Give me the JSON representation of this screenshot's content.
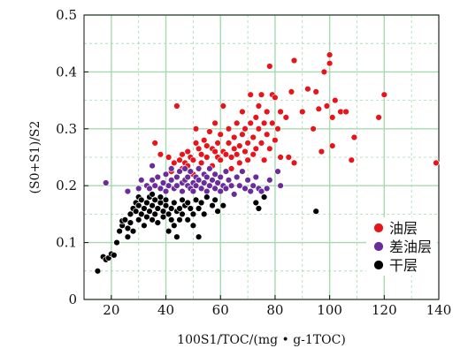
{
  "chart_data": {
    "type": "scatter",
    "xlabel": "100S1/TOC/(mg • g-1TOC)",
    "ylabel": "(S0+S1)/S2",
    "xlim": [
      10,
      140
    ],
    "ylim": [
      0,
      0.5
    ],
    "x_ticks": [
      "20",
      "40",
      "60",
      "80",
      "100",
      "120",
      "140"
    ],
    "y_ticks": [
      "0",
      "0.1",
      "0.2",
      "0.3",
      "0.4",
      "0.5"
    ],
    "grid": true,
    "legend_position": "bottom-right",
    "series": [
      {
        "name": "油层",
        "color": "#e8141c",
        "points": [
          [
            36,
            0.275
          ],
          [
            38,
            0.255
          ],
          [
            41,
            0.25
          ],
          [
            42,
            0.225
          ],
          [
            43,
            0.24
          ],
          [
            44,
            0.215
          ],
          [
            44,
            0.34
          ],
          [
            45,
            0.245
          ],
          [
            46,
            0.23
          ],
          [
            46,
            0.255
          ],
          [
            47,
            0.24
          ],
          [
            48,
            0.26
          ],
          [
            48,
            0.235
          ],
          [
            49,
            0.25
          ],
          [
            50,
            0.245
          ],
          [
            50,
            0.22
          ],
          [
            51,
            0.275
          ],
          [
            51,
            0.3
          ],
          [
            52,
            0.265
          ],
          [
            53,
            0.255
          ],
          [
            53,
            0.24
          ],
          [
            54,
            0.28
          ],
          [
            55,
            0.27
          ],
          [
            55,
            0.25
          ],
          [
            56,
            0.295
          ],
          [
            57,
            0.265
          ],
          [
            57,
            0.235
          ],
          [
            58,
            0.26
          ],
          [
            58,
            0.31
          ],
          [
            59,
            0.25
          ],
          [
            59,
            0.275
          ],
          [
            60,
            0.245
          ],
          [
            60,
            0.29
          ],
          [
            61,
            0.26
          ],
          [
            61,
            0.34
          ],
          [
            62,
            0.255
          ],
          [
            63,
            0.275
          ],
          [
            63,
            0.3
          ],
          [
            64,
            0.23
          ],
          [
            64,
            0.25
          ],
          [
            65,
            0.265
          ],
          [
            65,
            0.285
          ],
          [
            66,
            0.31
          ],
          [
            66,
            0.255
          ],
          [
            67,
            0.27
          ],
          [
            67,
            0.24
          ],
          [
            68,
            0.29
          ],
          [
            68,
            0.33
          ],
          [
            69,
            0.26
          ],
          [
            69,
            0.3
          ],
          [
            70,
            0.275
          ],
          [
            70,
            0.245
          ],
          [
            71,
            0.31
          ],
          [
            71,
            0.36
          ],
          [
            72,
            0.285
          ],
          [
            72,
            0.255
          ],
          [
            73,
            0.32
          ],
          [
            73,
            0.265
          ],
          [
            74,
            0.34
          ],
          [
            74,
            0.3
          ],
          [
            75,
            0.275
          ],
          [
            75,
            0.36
          ],
          [
            76,
            0.31
          ],
          [
            76,
            0.245
          ],
          [
            77,
            0.33
          ],
          [
            77,
            0.29
          ],
          [
            78,
            0.41
          ],
          [
            78,
            0.265
          ],
          [
            79,
            0.36
          ],
          [
            79,
            0.31
          ],
          [
            80,
            0.28
          ],
          [
            80,
            0.355
          ],
          [
            81,
            0.3
          ],
          [
            82,
            0.25
          ],
          [
            82,
            0.33
          ],
          [
            84,
            0.32
          ],
          [
            85,
            0.25
          ],
          [
            86,
            0.365
          ],
          [
            87,
            0.42
          ],
          [
            87,
            0.24
          ],
          [
            90,
            0.33
          ],
          [
            92,
            0.37
          ],
          [
            94,
            0.3
          ],
          [
            95,
            0.365
          ],
          [
            96,
            0.335
          ],
          [
            97,
            0.26
          ],
          [
            98,
            0.4
          ],
          [
            99,
            0.34
          ],
          [
            100,
            0.43
          ],
          [
            100,
            0.415
          ],
          [
            101,
            0.27
          ],
          [
            101,
            0.32
          ],
          [
            102,
            0.35
          ],
          [
            104,
            0.33
          ],
          [
            106,
            0.33
          ],
          [
            108,
            0.245
          ],
          [
            109,
            0.285
          ],
          [
            118,
            0.32
          ],
          [
            120,
            0.36
          ],
          [
            139,
            0.24
          ]
        ]
      },
      {
        "name": "差油层",
        "color": "#6a2c9a",
        "points": [
          [
            18,
            0.205
          ],
          [
            26,
            0.19
          ],
          [
            30,
            0.195
          ],
          [
            31,
            0.21
          ],
          [
            33,
            0.2
          ],
          [
            34,
            0.195
          ],
          [
            35,
            0.21
          ],
          [
            35,
            0.235
          ],
          [
            36,
            0.2
          ],
          [
            37,
            0.215
          ],
          [
            38,
            0.195
          ],
          [
            39,
            0.205
          ],
          [
            40,
            0.22
          ],
          [
            40,
            0.19
          ],
          [
            41,
            0.2
          ],
          [
            42,
            0.23
          ],
          [
            42,
            0.21
          ],
          [
            43,
            0.195
          ],
          [
            44,
            0.215
          ],
          [
            44,
            0.2
          ],
          [
            45,
            0.225
          ],
          [
            46,
            0.205
          ],
          [
            46,
            0.19
          ],
          [
            47,
            0.21
          ],
          [
            47,
            0.23
          ],
          [
            48,
            0.2
          ],
          [
            48,
            0.215
          ],
          [
            49,
            0.195
          ],
          [
            49,
            0.225
          ],
          [
            50,
            0.205
          ],
          [
            50,
            0.19
          ],
          [
            51,
            0.215
          ],
          [
            51,
            0.2
          ],
          [
            52,
            0.23
          ],
          [
            52,
            0.21
          ],
          [
            53,
            0.195
          ],
          [
            54,
            0.22
          ],
          [
            54,
            0.205
          ],
          [
            55,
            0.19
          ],
          [
            55,
            0.215
          ],
          [
            56,
            0.2
          ],
          [
            56,
            0.23
          ],
          [
            57,
            0.21
          ],
          [
            58,
            0.195
          ],
          [
            58,
            0.22
          ],
          [
            59,
            0.205
          ],
          [
            60,
            0.19
          ],
          [
            60,
            0.215
          ],
          [
            61,
            0.2
          ],
          [
            62,
            0.225
          ],
          [
            62,
            0.195
          ],
          [
            63,
            0.21
          ],
          [
            64,
            0.2
          ],
          [
            65,
            0.185
          ],
          [
            66,
            0.215
          ],
          [
            67,
            0.2
          ],
          [
            68,
            0.225
          ],
          [
            69,
            0.195
          ],
          [
            70,
            0.21
          ],
          [
            71,
            0.19
          ],
          [
            72,
            0.2
          ],
          [
            73,
            0.215
          ],
          [
            74,
            0.195
          ],
          [
            75,
            0.19
          ],
          [
            77,
            0.195
          ],
          [
            78,
            0.21
          ],
          [
            81,
            0.225
          ],
          [
            82,
            0.2
          ]
        ]
      },
      {
        "name": "干层",
        "color": "#000000",
        "points": [
          [
            15,
            0.05
          ],
          [
            17,
            0.075
          ],
          [
            18,
            0.07
          ],
          [
            19,
            0.073
          ],
          [
            20,
            0.08
          ],
          [
            21,
            0.078
          ],
          [
            22,
            0.1
          ],
          [
            23,
            0.12
          ],
          [
            24,
            0.13
          ],
          [
            24,
            0.138
          ],
          [
            25,
            0.14
          ],
          [
            26,
            0.11
          ],
          [
            26,
            0.125
          ],
          [
            27,
            0.15
          ],
          [
            27,
            0.135
          ],
          [
            28,
            0.16
          ],
          [
            28,
            0.12
          ],
          [
            29,
            0.155
          ],
          [
            29,
            0.17
          ],
          [
            30,
            0.14
          ],
          [
            30,
            0.165
          ],
          [
            30,
            0.18
          ],
          [
            31,
            0.15
          ],
          [
            31,
            0.175
          ],
          [
            32,
            0.13
          ],
          [
            32,
            0.16
          ],
          [
            33,
            0.17
          ],
          [
            33,
            0.145
          ],
          [
            34,
            0.18
          ],
          [
            34,
            0.155
          ],
          [
            35,
            0.165
          ],
          [
            35,
            0.14
          ],
          [
            35,
            0.185
          ],
          [
            36,
            0.15
          ],
          [
            36,
            0.175
          ],
          [
            37,
            0.16
          ],
          [
            37,
            0.135
          ],
          [
            38,
            0.17
          ],
          [
            38,
            0.18
          ],
          [
            39,
            0.155
          ],
          [
            39,
            0.145
          ],
          [
            40,
            0.165
          ],
          [
            40,
            0.175
          ],
          [
            41,
            0.15
          ],
          [
            41,
            0.12
          ],
          [
            42,
            0.16
          ],
          [
            42,
            0.14
          ],
          [
            43,
            0.17
          ],
          [
            43,
            0.13
          ],
          [
            44,
            0.155
          ],
          [
            44,
            0.11
          ],
          [
            45,
            0.16
          ],
          [
            45,
            0.14
          ],
          [
            46,
            0.175
          ],
          [
            46,
            0.15
          ],
          [
            47,
            0.165
          ],
          [
            48,
            0.17
          ],
          [
            48,
            0.14
          ],
          [
            49,
            0.16
          ],
          [
            50,
            0.15
          ],
          [
            50,
            0.13
          ],
          [
            51,
            0.175
          ],
          [
            52,
            0.16
          ],
          [
            53,
            0.17
          ],
          [
            54,
            0.15
          ],
          [
            55,
            0.18
          ],
          [
            57,
            0.165
          ],
          [
            58,
            0.175
          ],
          [
            59,
            0.155
          ],
          [
            61,
            0.165
          ],
          [
            52,
            0.11
          ],
          [
            73,
            0.17
          ],
          [
            74,
            0.16
          ],
          [
            76,
            0.18
          ],
          [
            95,
            0.155
          ]
        ]
      }
    ]
  }
}
